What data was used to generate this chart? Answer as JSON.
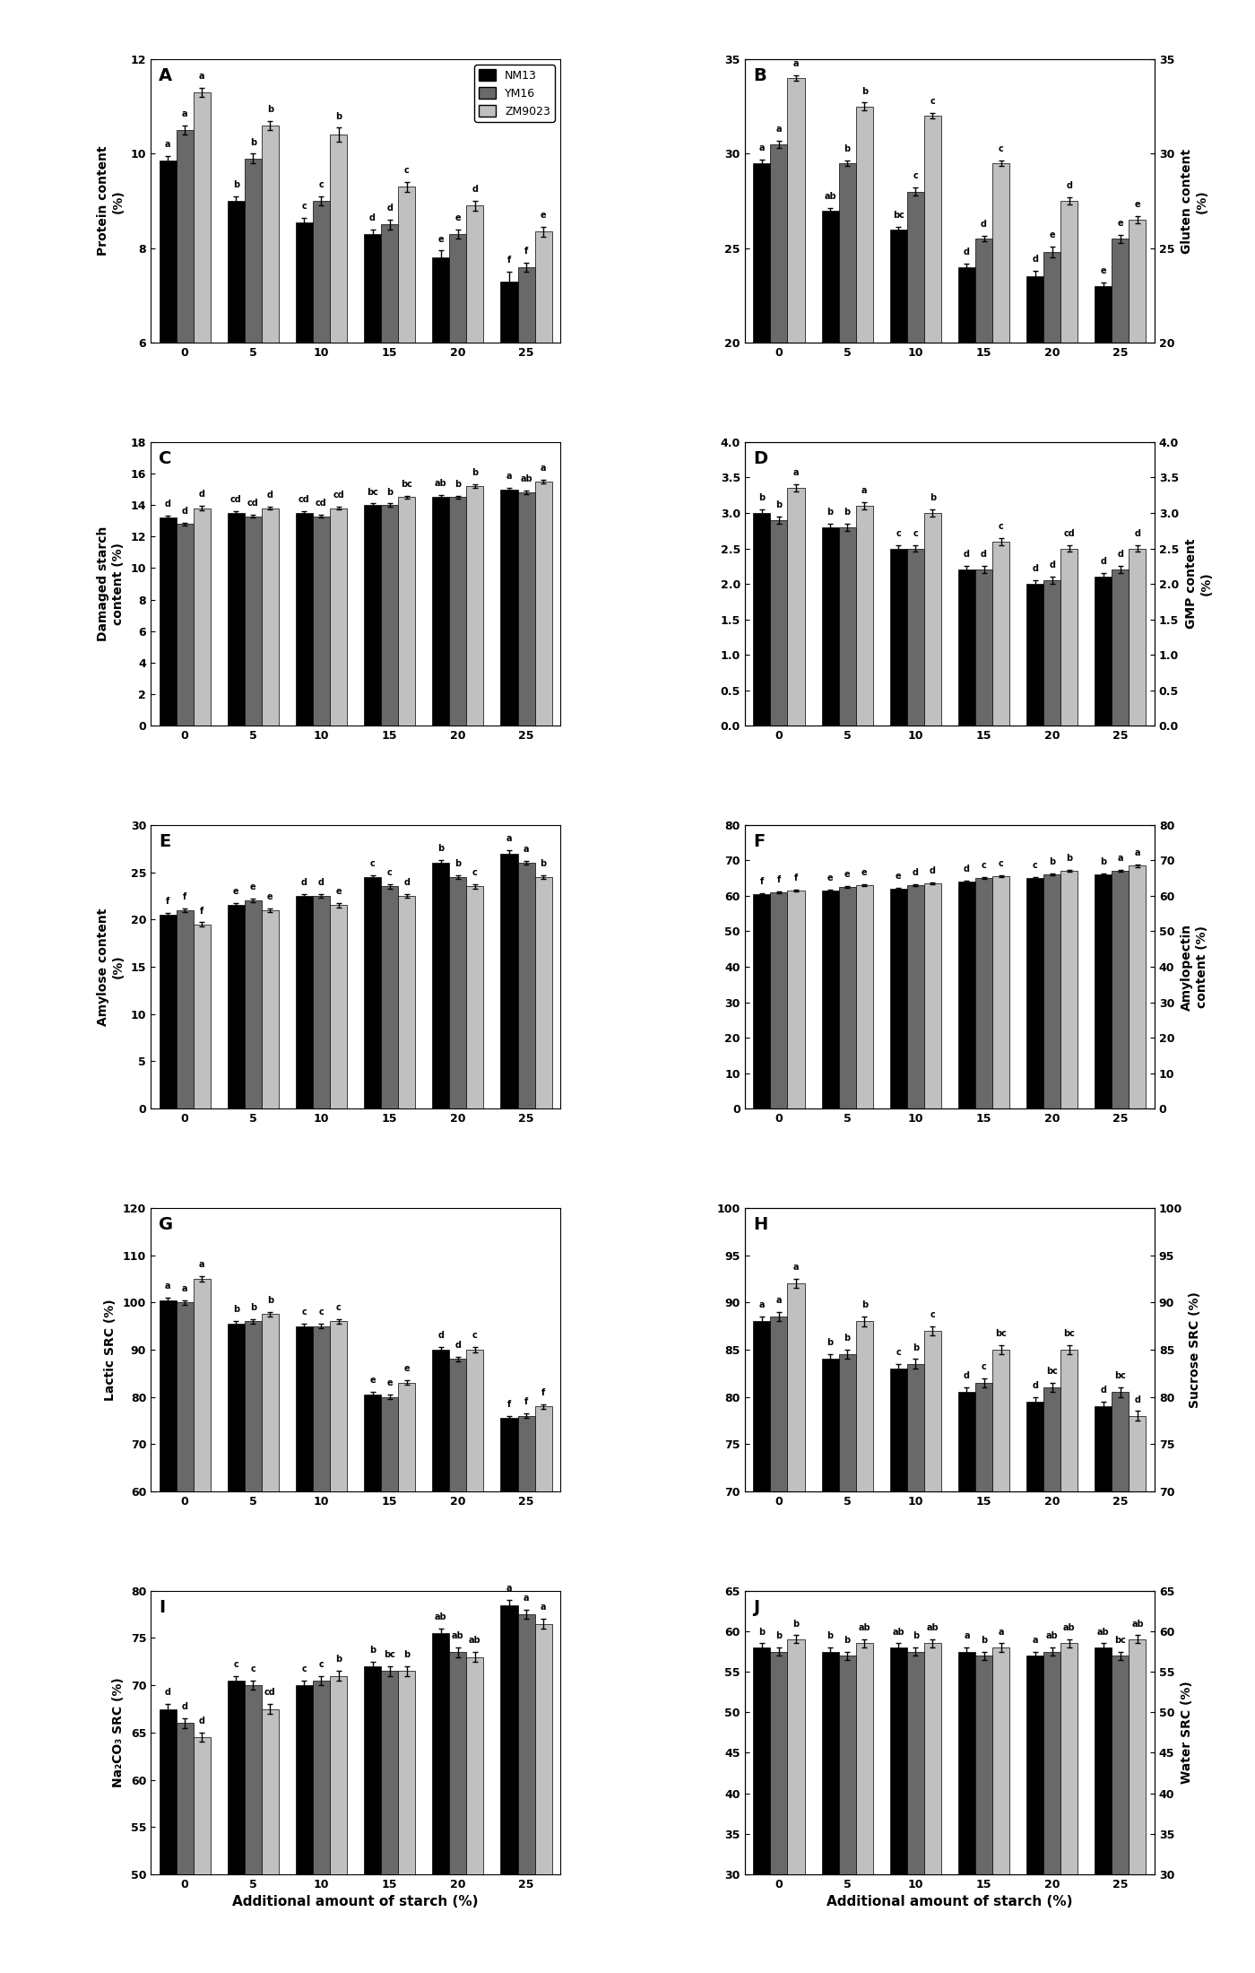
{
  "x_labels": [
    "0",
    "5",
    "10",
    "15",
    "20",
    "25"
  ],
  "x_values": [
    0,
    5,
    10,
    15,
    20,
    25
  ],
  "colors": {
    "NM13": "#000000",
    "YM16": "#808080",
    "ZM9023": "#C0C0C0"
  },
  "bar_width": 0.25,
  "panel_labels": [
    "A",
    "B",
    "C",
    "D",
    "E",
    "F",
    "G",
    "H",
    "I",
    "J"
  ],
  "A": {
    "title": "Protein content\n(%)",
    "ylim": [
      6,
      12
    ],
    "yticks": [
      6,
      8,
      10,
      12
    ],
    "NM13": [
      9.85,
      9.0,
      8.55,
      8.3,
      7.8,
      7.3
    ],
    "YM16": [
      10.5,
      9.9,
      9.0,
      8.5,
      8.3,
      7.6
    ],
    "ZM9023": [
      11.3,
      10.6,
      10.4,
      9.3,
      8.9,
      8.35
    ],
    "NM13_err": [
      0.1,
      0.1,
      0.1,
      0.1,
      0.15,
      0.2
    ],
    "YM16_err": [
      0.1,
      0.1,
      0.1,
      0.1,
      0.1,
      0.1
    ],
    "ZM9023_err": [
      0.1,
      0.1,
      0.15,
      0.1,
      0.1,
      0.1
    ],
    "NM13_letters": [
      "a",
      "b",
      "c",
      "d",
      "e",
      "f"
    ],
    "YM16_letters": [
      "a",
      "b",
      "c",
      "d",
      "e",
      "f"
    ],
    "ZM9023_letters": [
      "a",
      "b",
      "b",
      "c",
      "d",
      "e"
    ]
  },
  "B": {
    "title": "Gluten content\n(%)",
    "ylim": [
      20,
      35
    ],
    "yticks": [
      20,
      25,
      30,
      35
    ],
    "NM13": [
      29.5,
      27.0,
      26.0,
      24.0,
      23.5,
      23.0
    ],
    "YM16": [
      30.5,
      29.5,
      28.0,
      25.5,
      24.8,
      25.5
    ],
    "ZM9023": [
      34.0,
      32.5,
      32.0,
      29.5,
      27.5,
      26.5
    ],
    "NM13_err": [
      0.2,
      0.15,
      0.15,
      0.2,
      0.3,
      0.2
    ],
    "YM16_err": [
      0.2,
      0.15,
      0.2,
      0.15,
      0.3,
      0.2
    ],
    "ZM9023_err": [
      0.15,
      0.2,
      0.15,
      0.15,
      0.2,
      0.2
    ],
    "NM13_letters": [
      "a",
      "ab",
      "bc",
      "d",
      "d",
      "e"
    ],
    "YM16_letters": [
      "a",
      "b",
      "c",
      "d",
      "e",
      "e"
    ],
    "ZM9023_letters": [
      "a",
      "b",
      "c",
      "c",
      "d",
      "e"
    ]
  },
  "C": {
    "title": "Damaged starch\ncontent (%)",
    "ylim": [
      0,
      18
    ],
    "yticks": [
      0,
      2,
      4,
      6,
      8,
      10,
      12,
      14,
      16,
      18
    ],
    "NM13": [
      13.2,
      13.5,
      13.5,
      14.0,
      14.5,
      15.0
    ],
    "YM16": [
      12.8,
      13.3,
      13.3,
      14.0,
      14.5,
      14.8
    ],
    "ZM9023": [
      13.8,
      13.8,
      13.8,
      14.5,
      15.2,
      15.5
    ],
    "NM13_err": [
      0.15,
      0.1,
      0.1,
      0.1,
      0.15,
      0.1
    ],
    "YM16_err": [
      0.1,
      0.1,
      0.1,
      0.1,
      0.1,
      0.1
    ],
    "ZM9023_err": [
      0.15,
      0.1,
      0.1,
      0.1,
      0.1,
      0.1
    ],
    "NM13_letters": [
      "d",
      "cd",
      "cd",
      "bc",
      "ab",
      "a"
    ],
    "YM16_letters": [
      "d",
      "cd",
      "cd",
      "b",
      "b",
      "ab"
    ],
    "ZM9023_letters": [
      "d",
      "d",
      "cd",
      "bc",
      "b",
      "a"
    ]
  },
  "D": {
    "title": "GMP content\n(%)",
    "ylim": [
      0.0,
      4.0
    ],
    "yticks": [
      0.0,
      0.5,
      1.0,
      1.5,
      2.0,
      2.5,
      3.0,
      3.5,
      4.0
    ],
    "NM13": [
      3.0,
      2.8,
      2.5,
      2.2,
      2.0,
      2.1
    ],
    "YM16": [
      2.9,
      2.8,
      2.5,
      2.2,
      2.05,
      2.2
    ],
    "ZM9023": [
      3.35,
      3.1,
      3.0,
      2.6,
      2.5,
      2.5
    ],
    "NM13_err": [
      0.05,
      0.05,
      0.05,
      0.05,
      0.05,
      0.05
    ],
    "YM16_err": [
      0.05,
      0.05,
      0.05,
      0.05,
      0.05,
      0.05
    ],
    "ZM9023_err": [
      0.05,
      0.05,
      0.05,
      0.05,
      0.05,
      0.05
    ],
    "NM13_letters": [
      "b",
      "b",
      "c",
      "d",
      "d",
      "d"
    ],
    "YM16_letters": [
      "b",
      "b",
      "c",
      "d",
      "d",
      "d"
    ],
    "ZM9023_letters": [
      "a",
      "a",
      "b",
      "c",
      "cd",
      "d"
    ]
  },
  "E": {
    "title": "Amylose content\n(%)",
    "ylim": [
      0,
      30
    ],
    "yticks": [
      0,
      5,
      10,
      15,
      20,
      25,
      30
    ],
    "NM13": [
      20.5,
      21.5,
      22.5,
      24.5,
      26.0,
      27.0
    ],
    "YM16": [
      21.0,
      22.0,
      22.5,
      23.5,
      24.5,
      26.0
    ],
    "ZM9023": [
      19.5,
      21.0,
      21.5,
      22.5,
      23.5,
      24.5
    ],
    "NM13_err": [
      0.2,
      0.2,
      0.2,
      0.2,
      0.3,
      0.3
    ],
    "YM16_err": [
      0.2,
      0.2,
      0.2,
      0.2,
      0.2,
      0.2
    ],
    "ZM9023_err": [
      0.2,
      0.2,
      0.2,
      0.2,
      0.2,
      0.2
    ],
    "NM13_letters": [
      "f",
      "e",
      "d",
      "c",
      "b",
      "a"
    ],
    "YM16_letters": [
      "f",
      "e",
      "d",
      "c",
      "b",
      "a"
    ],
    "ZM9023_letters": [
      "f",
      "e",
      "e",
      "d",
      "c",
      "b"
    ]
  },
  "F": {
    "title": "Amylopectin\ncontent (%)",
    "ylim": [
      0,
      80
    ],
    "yticks": [
      0,
      10,
      20,
      30,
      40,
      50,
      60,
      70,
      80
    ],
    "NM13": [
      60.5,
      61.5,
      62.0,
      64.0,
      65.0,
      66.0
    ],
    "YM16": [
      61.0,
      62.5,
      63.0,
      65.0,
      66.0,
      67.0
    ],
    "ZM9023": [
      61.5,
      63.0,
      63.5,
      65.5,
      67.0,
      68.5
    ],
    "NM13_err": [
      0.3,
      0.3,
      0.3,
      0.3,
      0.3,
      0.3
    ],
    "YM16_err": [
      0.3,
      0.3,
      0.3,
      0.3,
      0.3,
      0.3
    ],
    "ZM9023_err": [
      0.3,
      0.3,
      0.3,
      0.3,
      0.3,
      0.3
    ],
    "NM13_letters": [
      "f",
      "e",
      "e",
      "d",
      "c",
      "b"
    ],
    "YM16_letters": [
      "f",
      "e",
      "d",
      "c",
      "b",
      "a"
    ],
    "ZM9023_letters": [
      "f",
      "e",
      "d",
      "c",
      "b",
      "a"
    ]
  },
  "G": {
    "title": "Lactic SRC (%)",
    "ylim": [
      60,
      120
    ],
    "yticks": [
      60,
      70,
      80,
      90,
      100,
      110,
      120
    ],
    "NM13": [
      100.5,
      95.5,
      95.0,
      80.5,
      90.0,
      75.5
    ],
    "YM16": [
      100.0,
      96.0,
      95.0,
      80.0,
      88.0,
      76.0
    ],
    "ZM9023": [
      105.0,
      97.5,
      96.0,
      83.0,
      90.0,
      78.0
    ],
    "NM13_err": [
      0.5,
      0.5,
      0.5,
      0.5,
      0.5,
      0.5
    ],
    "YM16_err": [
      0.5,
      0.5,
      0.5,
      0.5,
      0.5,
      0.5
    ],
    "ZM9023_err": [
      0.5,
      0.5,
      0.5,
      0.5,
      0.5,
      0.5
    ],
    "NM13_letters": [
      "a",
      "b",
      "c",
      "e",
      "d",
      "f"
    ],
    "YM16_letters": [
      "a",
      "b",
      "c",
      "e",
      "d",
      "f"
    ],
    "ZM9023_letters": [
      "a",
      "b",
      "c",
      "e",
      "c",
      "f"
    ]
  },
  "H": {
    "title": "Sucrose SRC (%)",
    "ylim": [
      70,
      100
    ],
    "yticks": [
      70,
      75,
      80,
      85,
      90,
      95,
      100
    ],
    "NM13": [
      88.0,
      84.0,
      83.0,
      80.5,
      79.5,
      79.0
    ],
    "YM16": [
      88.5,
      84.5,
      83.5,
      81.5,
      81.0,
      80.5
    ],
    "ZM9023": [
      92.0,
      88.0,
      87.0,
      85.0,
      85.0,
      78.0
    ],
    "NM13_err": [
      0.5,
      0.5,
      0.5,
      0.5,
      0.5,
      0.5
    ],
    "YM16_err": [
      0.5,
      0.5,
      0.5,
      0.5,
      0.5,
      0.5
    ],
    "ZM9023_err": [
      0.5,
      0.5,
      0.5,
      0.5,
      0.5,
      0.5
    ],
    "NM13_letters": [
      "a",
      "b",
      "c",
      "d",
      "d",
      "d"
    ],
    "YM16_letters": [
      "a",
      "b",
      "b",
      "c",
      "bc",
      "bc"
    ],
    "ZM9023_letters": [
      "a",
      "b",
      "c",
      "bc",
      "bc",
      "d"
    ]
  },
  "I": {
    "title": "Na₂CO₃ SRC (%)",
    "ylim": [
      50,
      80
    ],
    "yticks": [
      50,
      55,
      60,
      65,
      70,
      75,
      80
    ],
    "NM13": [
      67.5,
      70.5,
      70.0,
      72.0,
      75.5,
      78.5
    ],
    "YM16": [
      66.0,
      70.0,
      70.5,
      71.5,
      73.5,
      77.5
    ],
    "ZM9023": [
      64.5,
      67.5,
      71.0,
      71.5,
      73.0,
      76.5
    ],
    "NM13_err": [
      0.5,
      0.5,
      0.5,
      0.5,
      0.5,
      0.5
    ],
    "YM16_err": [
      0.5,
      0.5,
      0.5,
      0.5,
      0.5,
      0.5
    ],
    "ZM9023_err": [
      0.5,
      0.5,
      0.5,
      0.5,
      0.5,
      0.5
    ],
    "NM13_letters": [
      "d",
      "c",
      "c",
      "b",
      "ab",
      "a"
    ],
    "YM16_letters": [
      "d",
      "c",
      "c",
      "bc",
      "ab",
      "a"
    ],
    "ZM9023_letters": [
      "d",
      "cd",
      "b",
      "b",
      "ab",
      "a"
    ]
  },
  "J": {
    "title": "Water SRC (%)",
    "ylim": [
      30,
      65
    ],
    "yticks": [
      30,
      35,
      40,
      45,
      50,
      55,
      60,
      65
    ],
    "NM13": [
      58.0,
      57.5,
      58.0,
      57.5,
      57.0,
      58.0
    ],
    "YM16": [
      57.5,
      57.0,
      57.5,
      57.0,
      57.5,
      57.0
    ],
    "ZM9023": [
      59.0,
      58.5,
      58.5,
      58.0,
      58.5,
      59.0
    ],
    "NM13_err": [
      0.5,
      0.5,
      0.5,
      0.5,
      0.5,
      0.5
    ],
    "YM16_err": [
      0.5,
      0.5,
      0.5,
      0.5,
      0.5,
      0.5
    ],
    "ZM9023_err": [
      0.5,
      0.5,
      0.5,
      0.5,
      0.5,
      0.5
    ],
    "NM13_letters": [
      "b",
      "b",
      "ab",
      "a",
      "a",
      "ab"
    ],
    "YM16_letters": [
      "b",
      "b",
      "b",
      "b",
      "ab",
      "bc"
    ],
    "ZM9023_letters": [
      "b",
      "ab",
      "ab",
      "a",
      "ab",
      "ab"
    ]
  }
}
